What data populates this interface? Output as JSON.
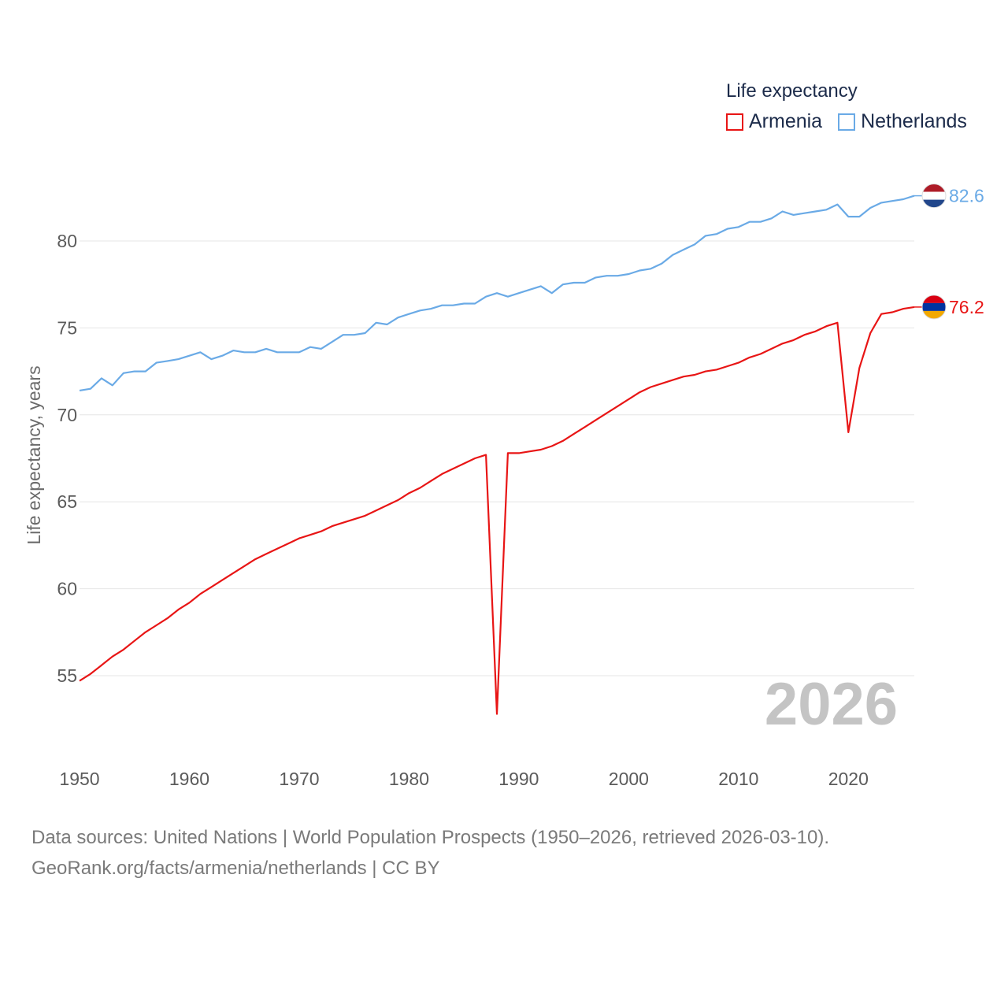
{
  "legend": {
    "title": "Life expectancy",
    "items": [
      {
        "label": "Armenia",
        "color": "#e81515"
      },
      {
        "label": "Netherlands",
        "color": "#6aaae6"
      }
    ]
  },
  "source": {
    "line1": "Data sources: United Nations | World Population Prospects (1950–2026, retrieved 2026-03-10).",
    "line2": "GeoRank.org/facts/armenia/netherlands | CC BY"
  },
  "chart_data": {
    "type": "line",
    "title": "Life expectancy",
    "xlabel": "",
    "ylabel": "Life expectancy, years",
    "xlim": [
      1950,
      2026
    ],
    "ylim": [
      51,
      85
    ],
    "yticks": [
      55,
      60,
      65,
      70,
      75,
      80
    ],
    "xticks": [
      1950,
      1960,
      1970,
      1980,
      1990,
      2000,
      2010,
      2020
    ],
    "grid": true,
    "year_badge": "2026",
    "x": [
      1950,
      1951,
      1952,
      1953,
      1954,
      1955,
      1956,
      1957,
      1958,
      1959,
      1960,
      1961,
      1962,
      1963,
      1964,
      1965,
      1966,
      1967,
      1968,
      1969,
      1970,
      1971,
      1972,
      1973,
      1974,
      1975,
      1976,
      1977,
      1978,
      1979,
      1980,
      1981,
      1982,
      1983,
      1984,
      1985,
      1986,
      1987,
      1988,
      1989,
      1990,
      1991,
      1992,
      1993,
      1994,
      1995,
      1996,
      1997,
      1998,
      1999,
      2000,
      2001,
      2002,
      2003,
      2004,
      2005,
      2006,
      2007,
      2008,
      2009,
      2010,
      2011,
      2012,
      2013,
      2014,
      2015,
      2016,
      2017,
      2018,
      2019,
      2020,
      2021,
      2022,
      2023,
      2024,
      2025,
      2026
    ],
    "series": [
      {
        "name": "Armenia",
        "color": "#e81515",
        "end_label": "76.2",
        "flag": "armenia-flag",
        "values": [
          54.7,
          55.1,
          55.6,
          56.1,
          56.5,
          57.0,
          57.5,
          57.9,
          58.3,
          58.8,
          59.2,
          59.7,
          60.1,
          60.5,
          60.9,
          61.3,
          61.7,
          62.0,
          62.3,
          62.6,
          62.9,
          63.1,
          63.3,
          63.6,
          63.8,
          64.0,
          64.2,
          64.5,
          64.8,
          65.1,
          65.5,
          65.8,
          66.2,
          66.6,
          66.9,
          67.2,
          67.5,
          67.7,
          52.8,
          67.8,
          67.8,
          67.9,
          68.0,
          68.2,
          68.5,
          68.9,
          69.3,
          69.7,
          70.1,
          70.5,
          70.9,
          71.3,
          71.6,
          71.8,
          72.0,
          72.2,
          72.3,
          72.5,
          72.6,
          72.8,
          73.0,
          73.3,
          73.5,
          73.8,
          74.1,
          74.3,
          74.6,
          74.8,
          75.1,
          75.3,
          69.0,
          72.7,
          74.7,
          75.8,
          75.9,
          76.1,
          76.2
        ]
      },
      {
        "name": "Netherlands",
        "color": "#6aaae6",
        "end_label": "82.6",
        "flag": "netherlands-flag",
        "values": [
          71.4,
          71.5,
          72.1,
          71.7,
          72.4,
          72.5,
          72.5,
          73.0,
          73.1,
          73.2,
          73.4,
          73.6,
          73.2,
          73.4,
          73.7,
          73.6,
          73.6,
          73.8,
          73.6,
          73.6,
          73.6,
          73.9,
          73.8,
          74.2,
          74.6,
          74.6,
          74.7,
          75.3,
          75.2,
          75.6,
          75.8,
          76.0,
          76.1,
          76.3,
          76.3,
          76.4,
          76.4,
          76.8,
          77.0,
          76.8,
          77.0,
          77.2,
          77.4,
          77.0,
          77.5,
          77.6,
          77.6,
          77.9,
          78.0,
          78.0,
          78.1,
          78.3,
          78.4,
          78.7,
          79.2,
          79.5,
          79.8,
          80.3,
          80.4,
          80.7,
          80.8,
          81.1,
          81.1,
          81.3,
          81.7,
          81.5,
          81.6,
          81.7,
          81.8,
          82.1,
          81.4,
          81.4,
          81.9,
          82.2,
          82.3,
          82.4,
          82.6
        ]
      }
    ]
  }
}
